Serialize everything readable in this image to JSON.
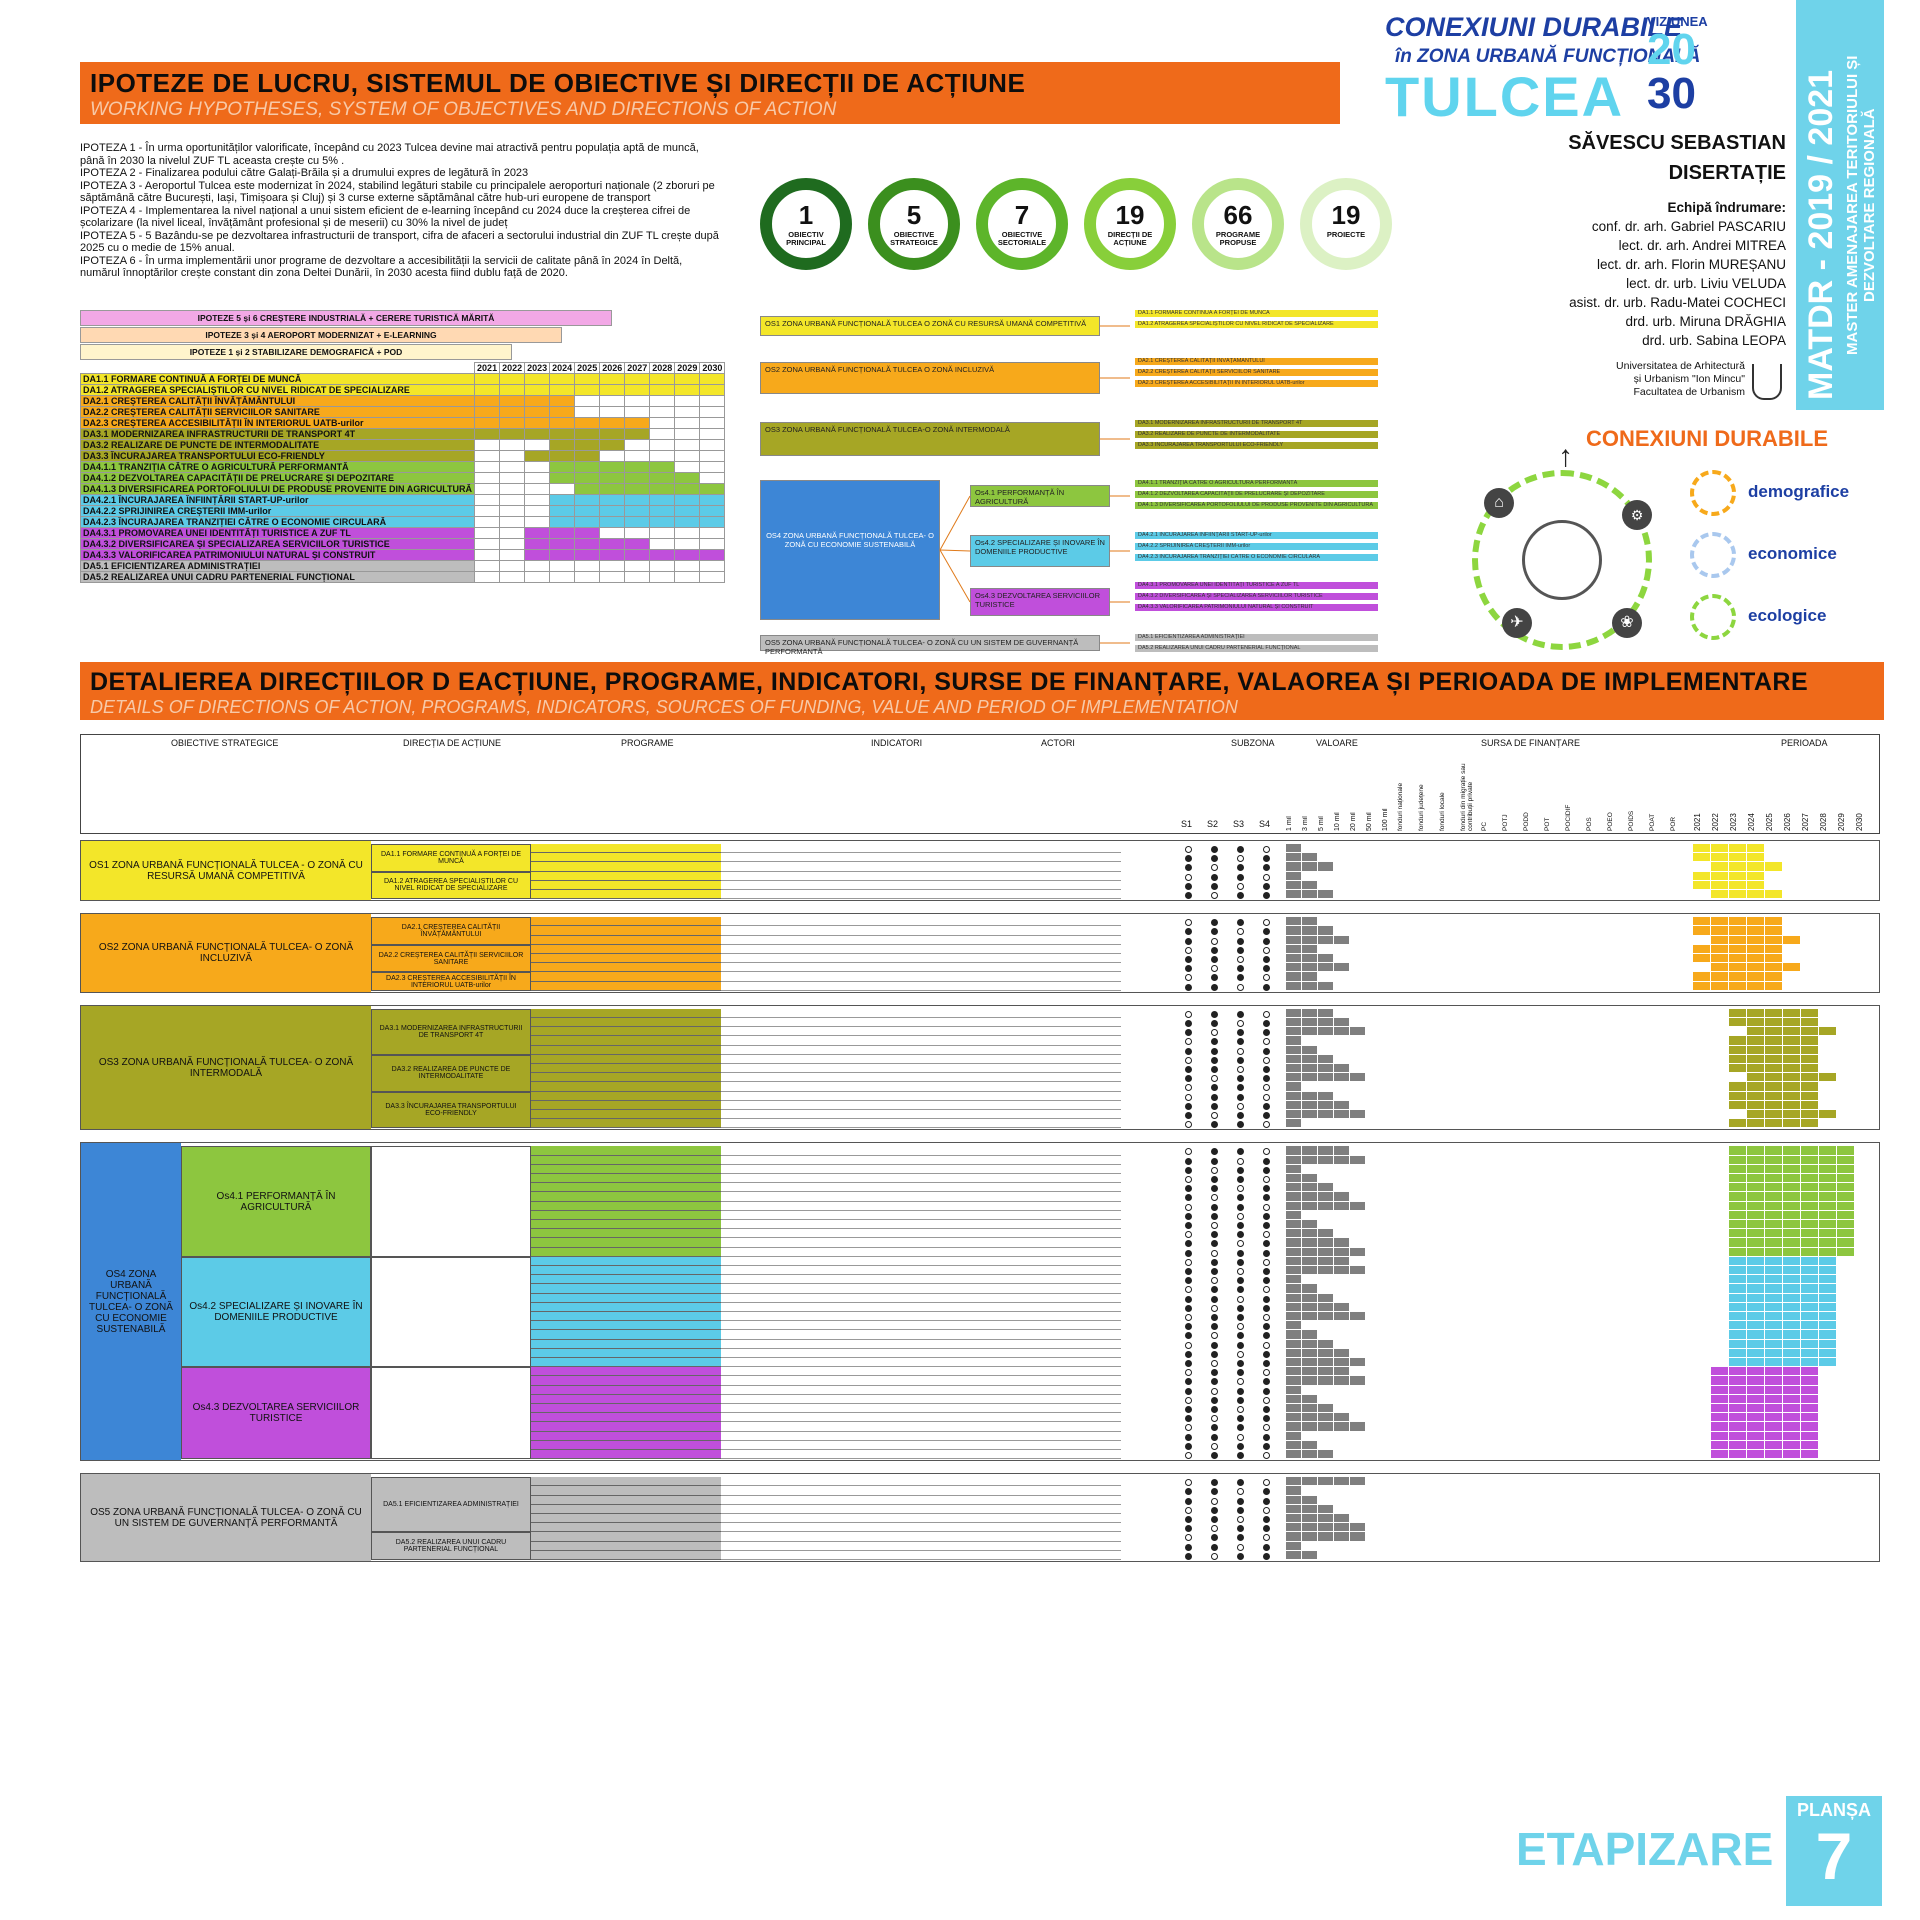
{
  "header": {
    "title_ro": "IPOTEZE DE LUCRU, SISTEMUL DE OBIECTIVE ȘI DIRECȚII DE ACȚIUNE",
    "title_en": "WORKING HYPOTHESES, SYSTEM OF OBJECTIVES AND DIRECTIONS OF ACTION"
  },
  "brand": {
    "line1": "CONEXIUNI DURABILE",
    "line2": "în ZONA URBANĂ FUNCȚIONALĂ",
    "city": "TULCEA",
    "viziunea": "VIZIUNEA",
    "year_a": "20",
    "year_b": "30",
    "side_a": "MATDR - 2019 / 2021",
    "side_b": "MASTER AMENAJAREA TERITORIULUI ȘI DEZVOLTARE REGIONALĂ"
  },
  "author": {
    "name": "SĂVESCU SEBASTIAN",
    "work": "DISERTAȚIE",
    "team_title": "Echipă îndrumare:",
    "team": [
      "conf. dr. arh. Gabriel PASCARIU",
      "lect. dr. arh. Andrei MITREA",
      "lect. dr. arh. Florin MUREȘANU",
      "lect. dr. urb. Liviu VELUDA",
      "asist. dr. urb. Radu-Matei COCHECI",
      "drd. urb. Miruna DRĂGHIA",
      "drd. urb. Sabina LEOPA"
    ],
    "university": [
      "Universitatea de Arhitectură",
      "și Urbanism \"Ion Mincu\"",
      "Facultatea de Urbanism"
    ]
  },
  "hypotheses": [
    "IPOTEZA 1 - În urma oportunităților valorificate, începând cu 2023 Tulcea devine mai atractivă pentru populația aptă de muncă, până în 2030 la nivelul ZUF TL aceasta crește cu 5% .",
    "IPOTEZA 2 - Finalizarea podului către Galați-Brăila și a drumului expres de legătură în 2023",
    "IPOTEZA 3 - Aeroportul Tulcea este modernizat în 2024, stabilind legături stabile cu principalele aeroporturi naționale (2 zboruri pe săptămână către București, Iași, Timișoara și Cluj) și 3 curse externe săptămânal către hub-uri europene de transport",
    "IPOTEZA 4 - Implementarea la nivel național a unui sistem eficient de e-learning începând cu 2024 duce la creșterea cifrei de școlarizare (la nivel liceal, învățământ profesional și de meserii) cu 30% la nivel de județ",
    "IPOTEZA 5 - 5 Bazându-se pe dezvoltarea infrastructurii de transport, cifra de afaceri a sectorului industrial din ZUF TL crește după 2025 cu o medie de 15% anual.",
    "IPOTEZA 6 - În urma implementării unor programe de dezvoltare a accesibilității la servicii de calitate până în 2024 în Deltă, numărul înnoptărilor crește constant din zona Deltei Dunării, în 2030 acesta fiind dublu față de 2020."
  ],
  "stats": [
    {
      "n": "1",
      "label": "OBIECTIV PRINCIPAL",
      "color": "#1f6b1f"
    },
    {
      "n": "5",
      "label": "OBIECTIVE STRATEGICE",
      "color": "#3b8f1e"
    },
    {
      "n": "7",
      "label": "OBIECTIVE SECTORIALE",
      "color": "#5db52a"
    },
    {
      "n": "19",
      "label": "DIRECȚII DE ACȚIUNE",
      "color": "#88cf3a"
    },
    {
      "n": "66",
      "label": "PROGRAME PROPUSE",
      "color": "#b9e48a"
    },
    {
      "n": "19",
      "label": "PROIECTE",
      "color": "#dcf1c4"
    }
  ],
  "gantt": {
    "hyp_rows": [
      {
        "label": "IPOTEZE 5 și 6 CREȘTERE INDUSTRIALĂ + CERERE TURISTICĂ MĂRITĂ",
        "color": "#f2a8e6"
      },
      {
        "label": "IPOTEZE 3 și 4 AEROPORT MODERNIZAT + E-LEARNING",
        "color": "#ffd9b3"
      },
      {
        "label": "IPOTEZE 1 și 2 STABILIZARE DEMOGRAFICĂ + POD",
        "color": "#fff4cc"
      }
    ],
    "years": [
      "2021",
      "2022",
      "2023",
      "2024",
      "2025",
      "2026",
      "2027",
      "2028",
      "2029",
      "2030"
    ],
    "rows": [
      {
        "label": "DA1.1 FORMARE CONTINUĂ A FORȚEI DE MUNCĂ",
        "color": "#f3e629",
        "fill": [
          1,
          1,
          1,
          1,
          1,
          1,
          1,
          1,
          1,
          1
        ]
      },
      {
        "label": "DA1.2 ATRAGEREA SPECIALIȘTILOR CU NIVEL RIDICAT DE SPECIALIZARE",
        "color": "#f3e629",
        "fill": [
          1,
          1,
          1,
          1,
          1,
          1,
          1,
          1,
          1,
          1
        ]
      },
      {
        "label": "DA2.1 CREȘTEREA CALITĂȚII ÎNVĂȚĂMÂNTULUI",
        "color": "#f7a91b",
        "fill": [
          1,
          1,
          1,
          1,
          0,
          0,
          0,
          0,
          0,
          0
        ]
      },
      {
        "label": "DA2.2 CREȘTEREA CALITĂȚII SERVICIILOR SANITARE",
        "color": "#f7a91b",
        "fill": [
          1,
          1,
          1,
          1,
          0,
          0,
          0,
          0,
          0,
          0
        ]
      },
      {
        "label": "DA2.3 CREȘTEREA ACCESIBILITĂȚII ÎN INTERIORUL UATB-urilor",
        "color": "#f7a91b",
        "fill": [
          1,
          1,
          1,
          1,
          1,
          1,
          1,
          0,
          0,
          0
        ]
      },
      {
        "label": "DA3.1 MODERNIZAREA INFRASTRUCTURII DE TRANSPORT 4T",
        "color": "#a6a625",
        "fill": [
          1,
          1,
          1,
          1,
          1,
          1,
          1,
          0,
          0,
          0
        ]
      },
      {
        "label": "DA3.2 REALIZARE DE PUNCTE DE INTERMODALITATE",
        "color": "#a6a625",
        "fill": [
          0,
          0,
          0,
          1,
          1,
          1,
          0,
          0,
          0,
          0
        ]
      },
      {
        "label": "DA3.3 ÎNCURAJAREA TRANSPORTULUI ECO-FRIENDLY",
        "color": "#a6a625",
        "fill": [
          0,
          0,
          1,
          1,
          1,
          0,
          0,
          0,
          0,
          0
        ]
      },
      {
        "label": "DA4.1.1 TRANZIȚIA CĂTRE O AGRICULTURĂ PERFORMANTĂ",
        "color": "#8dc63f",
        "fill": [
          0,
          0,
          0,
          1,
          1,
          1,
          1,
          1,
          0,
          0
        ]
      },
      {
        "label": "DA4.1.2 DEZVOLTAREA CAPACITĂȚII DE PRELUCRARE ȘI DEPOZITARE",
        "color": "#8dc63f",
        "fill": [
          0,
          0,
          0,
          1,
          1,
          1,
          1,
          1,
          1,
          0
        ]
      },
      {
        "label": "DA4.1.3 DIVERSIFICAREA PORTOFOLIULUI DE PRODUSE PROVENITE DIN AGRICULTURĂ",
        "color": "#8dc63f",
        "fill": [
          0,
          0,
          0,
          0,
          1,
          1,
          1,
          1,
          1,
          1
        ]
      },
      {
        "label": "DA4.2.1 ÎNCURAJAREA ÎNFIINȚĂRII START-UP-urilor",
        "color": "#5ccbe7",
        "fill": [
          0,
          0,
          0,
          1,
          1,
          1,
          1,
          1,
          1,
          1
        ]
      },
      {
        "label": "DA4.2.2 SPRIJINIREA CREȘTERII IMM-urilor",
        "color": "#5ccbe7",
        "fill": [
          0,
          0,
          0,
          1,
          1,
          1,
          1,
          1,
          1,
          1
        ]
      },
      {
        "label": "DA4.2.3 ÎNCURAJAREA TRANZIȚIEI CĂTRE O ECONOMIE CIRCULARĂ",
        "color": "#5ccbe7",
        "fill": [
          0,
          0,
          0,
          1,
          1,
          1,
          1,
          1,
          1,
          1
        ]
      },
      {
        "label": "DA4.3.1 PROMOVAREA UNEI IDENTITĂȚI TURISTICE A ZUF TL",
        "color": "#c04fdb",
        "fill": [
          0,
          0,
          1,
          1,
          1,
          0,
          0,
          0,
          0,
          0
        ]
      },
      {
        "label": "DA4.3.2 DIVERSIFICAREA ȘI SPECIALIZAREA SERVICIILOR TURISTICE",
        "color": "#c04fdb",
        "fill": [
          0,
          0,
          1,
          1,
          1,
          1,
          1,
          0,
          0,
          0
        ]
      },
      {
        "label": "DA4.3.3 VALORIFICAREA PATRIMONIULUI NATURAL ȘI CONSTRUIT",
        "color": "#c04fdb",
        "fill": [
          0,
          0,
          1,
          1,
          1,
          1,
          1,
          1,
          1,
          1
        ]
      },
      {
        "label": "DA5.1 EFICIENTIZAREA ADMINISTRAȚIEI",
        "color": "#bdbdbd",
        "fill": [
          0,
          0,
          0,
          0,
          0,
          0,
          0,
          0,
          0,
          0
        ]
      },
      {
        "label": "DA5.2 REALIZAREA UNUI CADRU PARTENERIAL FUNCȚIONAL",
        "color": "#bdbdbd",
        "fill": [
          0,
          0,
          0,
          0,
          0,
          0,
          0,
          0,
          0,
          0
        ]
      }
    ]
  },
  "objectives_diagram": {
    "os": [
      {
        "label": "OS1 ZONA URBANĂ FUNCȚIONALĂ TULCEA O ZONĂ CU RESURSĂ UMANĂ COMPETITIVĂ",
        "color": "#f3e629"
      },
      {
        "label": "OS2 ZONA URBANĂ FUNCȚIONALĂ TULCEA O ZONĂ INCLUZIVĂ",
        "color": "#f7a91b"
      },
      {
        "label": "OS3 ZONA URBANĂ FUNCȚIONALĂ TULCEA-O ZONĂ INTERMODALĂ",
        "color": "#a6a625"
      },
      {
        "label": "OS4 ZONA URBANĂ FUNCȚIONALĂ TULCEA- O ZONĂ CU ECONOMIE SUSTENABILĂ",
        "color": "#3d86d6"
      },
      {
        "label": "OS5 ZONA URBANĂ FUNCȚIONALĂ TULCEA- O ZONĂ CU UN SISTEM DE GUVERNANȚĂ PERFORMANTĂ",
        "color": "#bdbdbd"
      }
    ],
    "sectorial": [
      {
        "label": "Os4.1 PERFORMANȚĂ ÎN AGRICULTURĂ",
        "color": "#8dc63f"
      },
      {
        "label": "Os4.2 SPECIALIZARE ȘI INOVARE ÎN DOMENIILE PRODUCTIVE",
        "color": "#5ccbe7"
      },
      {
        "label": "Os4.3 DEZVOLTAREA SERVICIILOR TURISTICE",
        "color": "#c04fdb"
      }
    ]
  },
  "conexiuni": {
    "title": "CONEXIUNI DURABILE",
    "items": [
      {
        "label": "demografice",
        "color": "#f7a91b"
      },
      {
        "label": "economice",
        "color": "#a9c8ee"
      },
      {
        "label": "ecologice",
        "color": "#8dd63f"
      }
    ]
  },
  "details": {
    "title_ro": "DETALIEREA DIRECȚIILOR D EACȚIUNE, PROGRAME, INDICATORI, SURSE DE FINANȚARE, VALAOREA ȘI PERIOADA DE IMPLEMENTARE",
    "title_en": "DETAILS OF DIRECTIONS OF ACTION, PROGRAMS, INDICATORS, SOURCES OF FUNDING, VALUE AND PERIOD OF IMPLEMENTATION",
    "columns": {
      "obiective": "OBIECTIVE STRATEGICE",
      "directia": "DIRECȚIA DE ACȚIUNE",
      "programe": "PROGRAME",
      "indicatori": "INDICATORI",
      "actori": "ACTORI",
      "subzona": "SUBZONA",
      "valoare": "VALOARE",
      "sursa": "SURSA DE FINANȚARE",
      "perioada": "PERIOADA"
    },
    "subzones": [
      "S1",
      "S2",
      "S3",
      "S4"
    ],
    "values": [
      "1 mil",
      "3 mil",
      "5 mil",
      "10 mil",
      "20 mil",
      "50 mil",
      "100 mil"
    ],
    "sources": [
      "fonduri naționale",
      "fonduri județene",
      "fonduri locale",
      "fonduri din migrație sau contribuții private",
      "PC",
      "POTJ",
      "PODD",
      "POT",
      "POCIDIF",
      "POS",
      "POEO",
      "POIDS",
      "POAT",
      "POR"
    ],
    "years": [
      "2021",
      "2022",
      "2023",
      "2024",
      "2025",
      "2026",
      "2027",
      "2028",
      "2029",
      "2030"
    ],
    "groups": [
      {
        "os": "OS1 ZONA URBANĂ FUNCȚIONALĂ TULCEA - O ZONĂ CU RESURSĂ UMANĂ COMPETITIVĂ",
        "color": "#f3e629",
        "das": [
          {
            "label": "DA1.1 FORMARE CONTINUĂ A FORȚEI DE MUNCĂ",
            "rows": 3
          },
          {
            "label": "DA1.2 ATRAGEREA SPECIALIȘTILOR CU NIVEL RIDICAT DE SPECIALIZARE",
            "rows": 3
          }
        ]
      },
      {
        "os": "OS2 ZONA URBANĂ FUNCȚIONALĂ TULCEA- O ZONĂ INCLUZIVĂ",
        "color": "#f7a91b",
        "das": [
          {
            "label": "DA2.1 CREȘTEREA CALITĂȚII ÎNVĂȚĂMÂNTULUI",
            "rows": 3
          },
          {
            "label": "DA2.2 CREȘTEREA CALITĂȚII SERVICIILOR SANITARE",
            "rows": 3
          },
          {
            "label": "DA2.3 CREȘTEREA ACCESIBILITĂȚII ÎN INTERIORUL UATB-urilor",
            "rows": 2
          }
        ]
      },
      {
        "os": "OS3 ZONA URBANĂ FUNCȚIONALĂ TULCEA- O ZONĂ INTERMODALĂ",
        "color": "#a6a625",
        "das": [
          {
            "label": "DA3.1 MODERNIZAREA INFRASTRUCTURII DE TRANSPORT 4T",
            "rows": 5
          },
          {
            "label": "DA3.2 REALIZAREA DE PUNCTE DE INTERMODALITATE",
            "rows": 4
          },
          {
            "label": "DA3.3 ÎNCURAJAREA TRANSPORTULUI ECO-FRIENDLY",
            "rows": 4
          }
        ]
      },
      {
        "os": "OS4 ZONA URBANĂ FUNCȚIONALĂ TULCEA- O ZONĂ CU ECONOMIE SUSTENABILĂ",
        "color": "#3d86d6",
        "das": [
          {
            "label": "Os4.1 PERFORMANȚĂ ÎN AGRICULTURĂ",
            "rows": 12
          },
          {
            "label": "Os4.2 SPECIALIZARE ȘI INOVARE ÎN DOMENIILE PRODUCTIVE",
            "rows": 12
          },
          {
            "label": "Os4.3 DEZVOLTAREA SERVICIILOR TURISTICE",
            "rows": 10
          }
        ]
      },
      {
        "os": "OS5 ZONA URBANĂ FUNCȚIONALĂ TULCEA- O ZONĂ CU UN SISTEM DE GUVERNANȚĂ PERFORMANTĂ",
        "color": "#bdbdbd",
        "das": [
          {
            "label": "DA5.1 EFICIENTIZAREA ADMINISTRAȚIEI",
            "rows": 6
          },
          {
            "label": "DA5.2 REALIZAREA UNUI CADRU PARTENERIAL FUNCȚIONAL",
            "rows": 3
          }
        ]
      }
    ]
  },
  "footer": {
    "etapizare": "ETAPIZARE",
    "plansa": "PLANȘA",
    "number": "7"
  }
}
